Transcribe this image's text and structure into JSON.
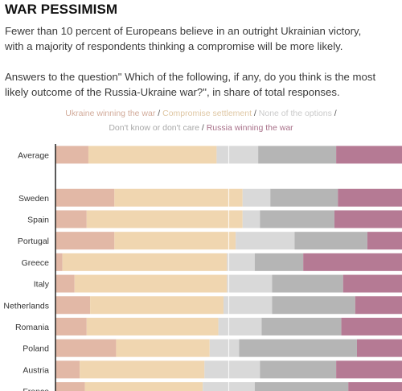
{
  "header": {
    "title": "WAR PESSIMISM",
    "paragraph1": "Fewer than 10 percent of Europeans believe in an outright Ukrainian victory, with a majority of respondents thinking a compromise will be more likely.",
    "paragraph2": "Answers to the question\" Which of the following, if any, do you think is the most likely outcome of the Russia-Ukraine war?\", in share of total responses."
  },
  "legend": {
    "items": [
      {
        "label": "Ukraine winning the war",
        "color": "#e2b8a6"
      },
      {
        "label": "Compromise settlement",
        "color": "#f0d6b0"
      },
      {
        "label": "None of the options",
        "color": "#d9d9d9"
      },
      {
        "label": "Don't know or don't care",
        "color": "#b5b5b5"
      },
      {
        "label": "Russia winning the war",
        "color": "#b57a94"
      }
    ],
    "separator": "/"
  },
  "chart_data": {
    "type": "bar",
    "orientation": "horizontal",
    "stacked": true,
    "units": "share of total responses (%)",
    "xlim": [
      0,
      100
    ],
    "categories": [
      "Average",
      "",
      "Sweden",
      "Spain",
      "Portugal",
      "Greece",
      "Italy",
      "Netherlands",
      "Romania",
      "Poland",
      "Austria",
      "France"
    ],
    "series": [
      {
        "name": "Ukraine winning the war",
        "color": "#e2b8a6",
        "values": [
          9.5,
          null,
          17,
          9,
          17,
          2,
          5.5,
          10,
          9,
          17.5,
          7,
          8.5
        ]
      },
      {
        "name": "Compromise settlement",
        "color": "#f0d6b0",
        "values": [
          37,
          null,
          37,
          45,
          35,
          47.5,
          44,
          38.5,
          38,
          27,
          36,
          34
        ]
      },
      {
        "name": "None of the options",
        "color": "#d9d9d9",
        "values": [
          12,
          null,
          8,
          5,
          17,
          8,
          13,
          14,
          12.5,
          8.5,
          16,
          15
        ]
      },
      {
        "name": "Don't know or don't care",
        "color": "#b5b5b5",
        "values": [
          22.5,
          null,
          19.5,
          21.5,
          21,
          14,
          20.5,
          24,
          23,
          34,
          22,
          27
        ]
      },
      {
        "name": "Russia winning the war",
        "color": "#b57a94",
        "values": [
          19,
          null,
          18.5,
          19.5,
          10,
          28.5,
          17,
          13.5,
          17.5,
          13,
          19,
          15.5
        ]
      }
    ],
    "reference_line": 50
  }
}
